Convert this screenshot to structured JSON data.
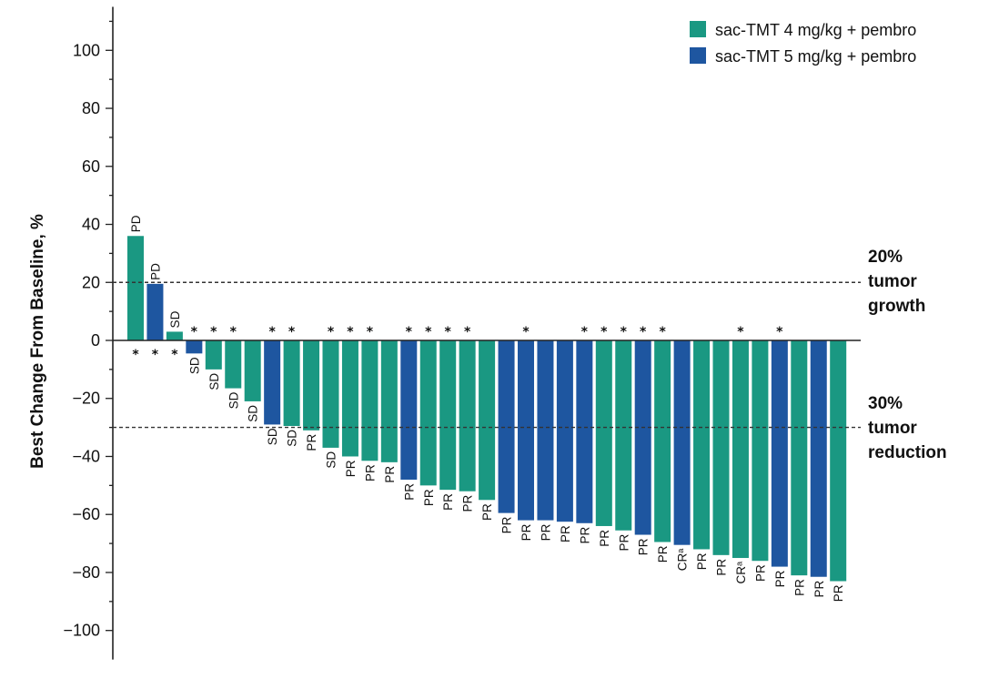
{
  "chart_data": {
    "type": "bar",
    "ylabel": "Best Change From Baseline, %",
    "ylim": [
      -110,
      115
    ],
    "yticks": [
      100,
      80,
      60,
      40,
      20,
      0,
      -20,
      -40,
      -60,
      -80,
      -100
    ],
    "ytick_labels": [
      "100",
      "80",
      "60",
      "40",
      "20",
      "0",
      "−20",
      "−40",
      "−60",
      "−80",
      "−100"
    ],
    "legend": [
      {
        "name": "sac-TMT 4 mg/kg + pembro",
        "color": "#1a9882"
      },
      {
        "name": "sac-TMT 5 mg/kg + pembro",
        "color": "#1e56a0"
      }
    ],
    "reference_lines": [
      {
        "value": 20,
        "text": [
          "20%",
          "tumor",
          "growth"
        ]
      },
      {
        "value": -30,
        "text": [
          "30%",
          "tumor",
          "reduction"
        ]
      }
    ],
    "star_symbol": "*",
    "bars": [
      {
        "value": 36,
        "group": 0,
        "label": "PD",
        "star": true
      },
      {
        "value": 19.5,
        "group": 1,
        "label": "PD",
        "star": true
      },
      {
        "value": 3,
        "group": 0,
        "label": "SD",
        "star": true
      },
      {
        "value": -4.5,
        "group": 1,
        "label": "SD",
        "star": true
      },
      {
        "value": -10,
        "group": 0,
        "label": "SD",
        "star": true
      },
      {
        "value": -16.5,
        "group": 0,
        "label": "SD",
        "star": true
      },
      {
        "value": -21,
        "group": 0,
        "label": "SD",
        "star": false
      },
      {
        "value": -29,
        "group": 1,
        "label": "SD",
        "star": true
      },
      {
        "value": -29.5,
        "group": 0,
        "label": "SD",
        "star": true
      },
      {
        "value": -31,
        "group": 0,
        "label": "PR",
        "star": false
      },
      {
        "value": -37,
        "group": 0,
        "label": "SD",
        "star": true
      },
      {
        "value": -40,
        "group": 0,
        "label": "PR",
        "star": true
      },
      {
        "value": -41.5,
        "group": 0,
        "label": "PR",
        "star": true
      },
      {
        "value": -42,
        "group": 0,
        "label": "PR",
        "star": false
      },
      {
        "value": -48,
        "group": 1,
        "label": "PR",
        "star": true
      },
      {
        "value": -50,
        "group": 0,
        "label": "PR",
        "star": true
      },
      {
        "value": -51.5,
        "group": 0,
        "label": "PR",
        "star": true
      },
      {
        "value": -52,
        "group": 0,
        "label": "PR",
        "star": true
      },
      {
        "value": -55,
        "group": 0,
        "label": "PR",
        "star": false
      },
      {
        "value": -59.5,
        "group": 1,
        "label": "PR",
        "star": false
      },
      {
        "value": -62,
        "group": 1,
        "label": "PR",
        "star": true
      },
      {
        "value": -62,
        "group": 1,
        "label": "PR",
        "star": false
      },
      {
        "value": -62.5,
        "group": 1,
        "label": "PR",
        "star": false
      },
      {
        "value": -63,
        "group": 1,
        "label": "PR",
        "star": true
      },
      {
        "value": -64,
        "group": 0,
        "label": "PR",
        "star": true
      },
      {
        "value": -65.5,
        "group": 0,
        "label": "PR",
        "star": true
      },
      {
        "value": -67,
        "group": 1,
        "label": "PR",
        "star": true
      },
      {
        "value": -69.5,
        "group": 0,
        "label": "PR",
        "star": true
      },
      {
        "value": -70.5,
        "group": 1,
        "label": "CRᵃ",
        "star": false
      },
      {
        "value": -72,
        "group": 0,
        "label": "PR",
        "star": false
      },
      {
        "value": -74,
        "group": 0,
        "label": "PR",
        "star": false
      },
      {
        "value": -75,
        "group": 0,
        "label": "CRᵃ",
        "star": true
      },
      {
        "value": -76,
        "group": 0,
        "label": "PR",
        "star": false
      },
      {
        "value": -78,
        "group": 1,
        "label": "PR",
        "star": true
      },
      {
        "value": -81,
        "group": 0,
        "label": "PR",
        "star": false
      },
      {
        "value": -81.5,
        "group": 1,
        "label": "PR",
        "star": false
      },
      {
        "value": -83,
        "group": 0,
        "label": "PR",
        "star": false
      }
    ]
  }
}
